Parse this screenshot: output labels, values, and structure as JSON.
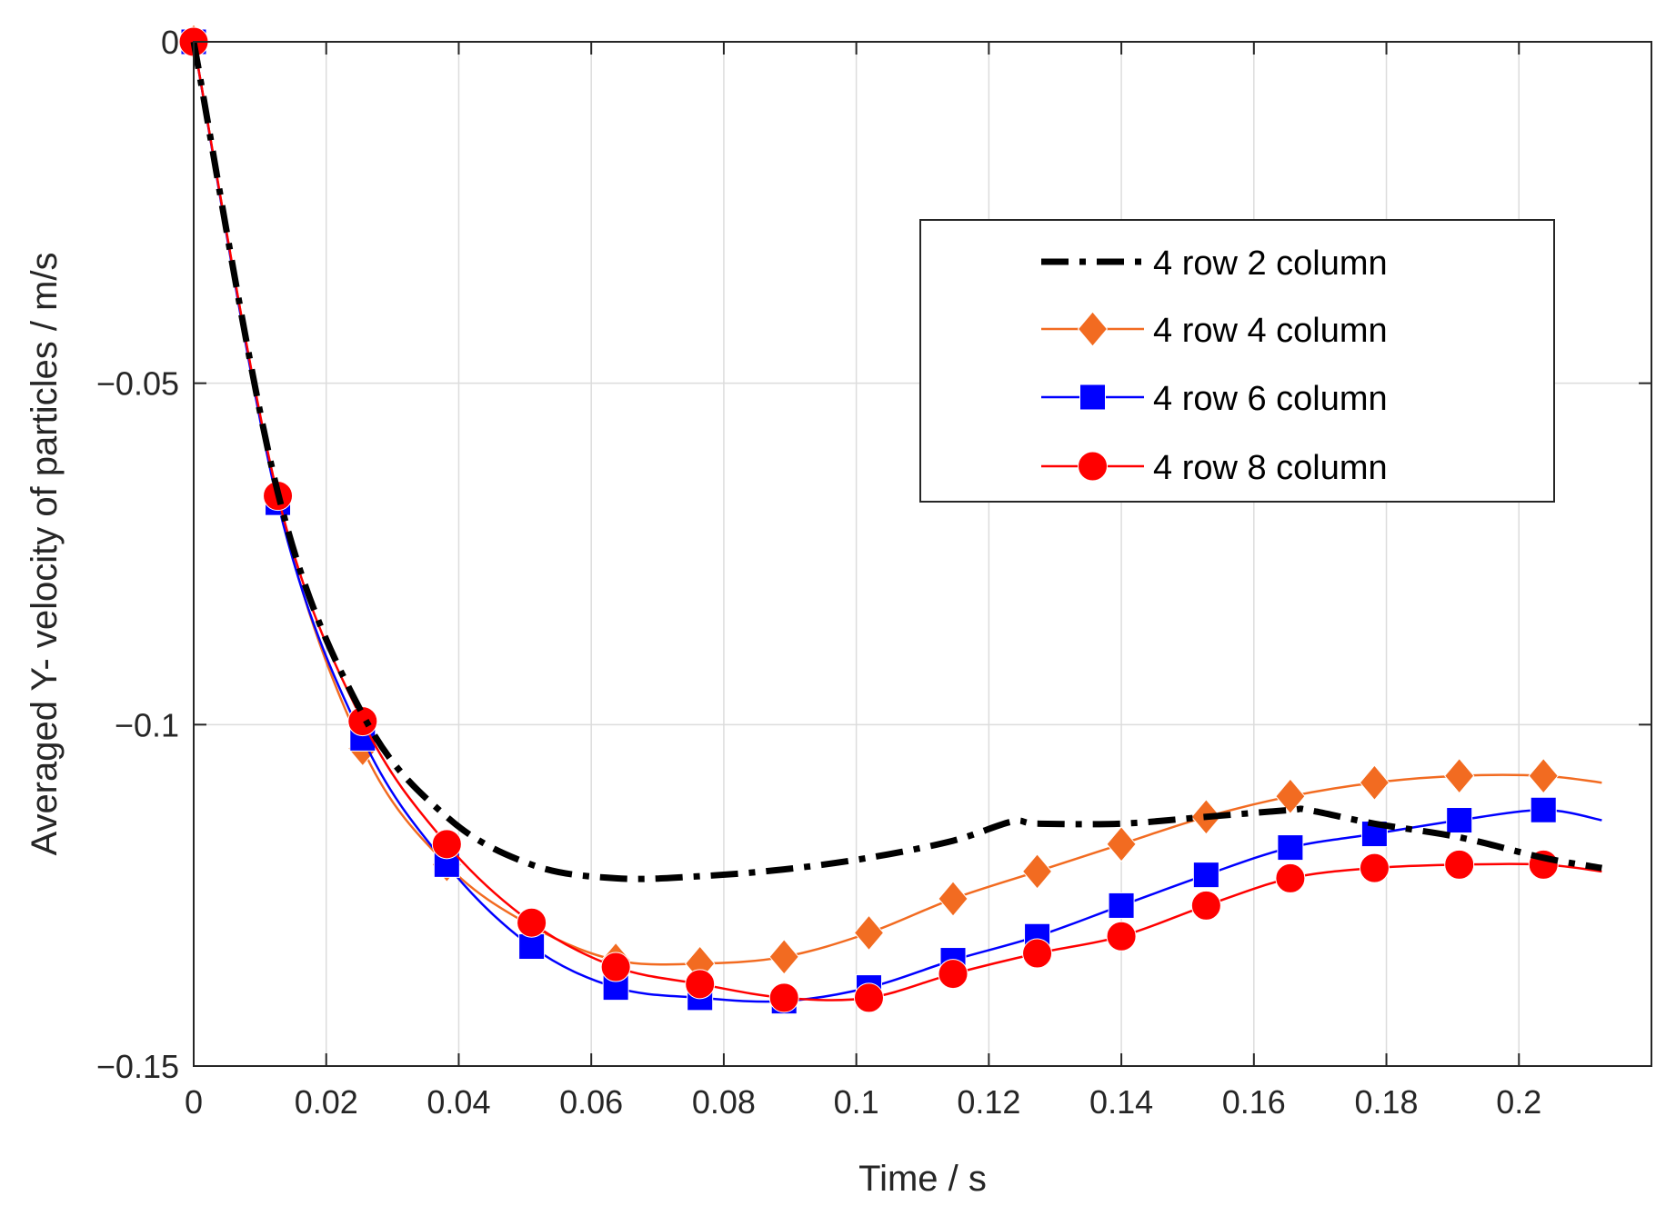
{
  "chart_data": {
    "type": "line",
    "title": "",
    "xlabel": "Time / s",
    "ylabel": "Averaged Y- velocity of particles / m/s",
    "xlim": [
      0,
      0.22
    ],
    "ylim": [
      -0.15,
      0
    ],
    "grid": true,
    "legend_position": "top-right",
    "x_ticks": [
      0,
      0.02,
      0.04,
      0.06,
      0.08,
      0.1,
      0.12,
      0.14,
      0.16,
      0.18,
      0.2
    ],
    "x_tick_labels": [
      "0",
      "0.02",
      "0.04",
      "0.06",
      "0.08",
      "0.1",
      "0.12",
      "0.14",
      "0.16",
      "0.18",
      "0.2"
    ],
    "y_ticks": [
      0,
      -0.05,
      -0.1,
      -0.15
    ],
    "y_tick_labels": [
      "0",
      "−0.05",
      "−0.1",
      "−0.15"
    ],
    "series": [
      {
        "name": "4 row 2 column",
        "color": "#000000",
        "style": "dashdot",
        "marker": "none",
        "x": [
          0,
          0.0127,
          0.0255,
          0.0382,
          0.051,
          0.0637,
          0.0764,
          0.0891,
          0.1019,
          0.1146,
          0.1235,
          0.1273,
          0.14,
          0.1528,
          0.1655,
          0.1682,
          0.1782,
          0.191,
          0.2037,
          0.2125
        ],
        "values": [
          0,
          -0.066,
          -0.0985,
          -0.1135,
          -0.1205,
          -0.1225,
          -0.1222,
          -0.1212,
          -0.1195,
          -0.117,
          -0.1142,
          -0.1145,
          -0.1145,
          -0.1135,
          -0.1125,
          -0.1125,
          -0.1145,
          -0.1165,
          -0.1195,
          -0.121
        ]
      },
      {
        "name": "4 row 4 column",
        "color": "#f26b21",
        "style": "solid",
        "marker": "diamond",
        "x": [
          0,
          0.0127,
          0.0255,
          0.0382,
          0.051,
          0.0637,
          0.0764,
          0.0891,
          0.1019,
          0.1146,
          0.1273,
          0.14,
          0.1528,
          0.1655,
          0.1782,
          0.191,
          0.2037,
          0.2125
        ],
        "values": [
          0,
          -0.067,
          -0.1035,
          -0.1205,
          -0.1295,
          -0.1345,
          -0.135,
          -0.134,
          -0.1305,
          -0.1255,
          -0.1215,
          -0.1175,
          -0.1135,
          -0.1105,
          -0.1085,
          -0.1075,
          -0.1075,
          -0.1085
        ]
      },
      {
        "name": "4 row 6 column",
        "color": "#0000ff",
        "style": "solid",
        "marker": "square",
        "x": [
          0,
          0.0127,
          0.0255,
          0.0382,
          0.051,
          0.0637,
          0.0764,
          0.0891,
          0.1019,
          0.1146,
          0.1273,
          0.14,
          0.1528,
          0.1655,
          0.1782,
          0.191,
          0.2037,
          0.2125
        ],
        "values": [
          0,
          -0.0675,
          -0.102,
          -0.1205,
          -0.1325,
          -0.1385,
          -0.14,
          -0.1405,
          -0.1385,
          -0.1345,
          -0.131,
          -0.1265,
          -0.122,
          -0.118,
          -0.116,
          -0.114,
          -0.1125,
          -0.114
        ]
      },
      {
        "name": "4 row 8 column",
        "color": "#ff0000",
        "style": "solid",
        "marker": "circle",
        "x": [
          0,
          0.0127,
          0.0255,
          0.0382,
          0.051,
          0.0637,
          0.0764,
          0.0891,
          0.1019,
          0.1146,
          0.1273,
          0.14,
          0.1528,
          0.1655,
          0.1782,
          0.191,
          0.2037,
          0.2125
        ],
        "values": [
          0,
          -0.0665,
          -0.0995,
          -0.1175,
          -0.129,
          -0.1355,
          -0.138,
          -0.14,
          -0.14,
          -0.1365,
          -0.1335,
          -0.131,
          -0.1265,
          -0.1225,
          -0.121,
          -0.1205,
          -0.1205,
          -0.1215
        ]
      }
    ]
  }
}
